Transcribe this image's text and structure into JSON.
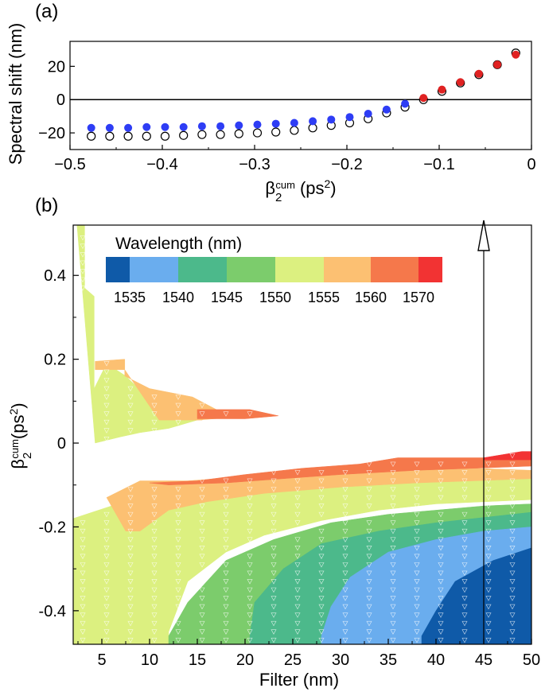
{
  "chart_data": [
    {
      "panel_label": "(a)",
      "type": "scatter",
      "ylabel": "Spectral shift (nm)",
      "xlabel_main": "β",
      "xlabel_sub": "2",
      "xlabel_sup": "cum",
      "xlabel_units": "(ps",
      "xlabel_units_sup": "2",
      "xlabel_units_end": ")",
      "xlim": [
        -0.5,
        0
      ],
      "ylim": [
        -30,
        35
      ],
      "xticks": [
        -0.5,
        -0.4,
        -0.3,
        -0.2,
        -0.1,
        0
      ],
      "xtick_labels": [
        "−0.5",
        "−0.4",
        "−0.3",
        "−0.2",
        "−0.1",
        "0"
      ],
      "yticks": [
        -20,
        0,
        20
      ],
      "ytick_labels": [
        "−20",
        "0",
        "20"
      ],
      "zero_line": 0,
      "series": [
        {
          "name": "open",
          "style": "open-circle",
          "x": [
            -0.477,
            -0.457,
            -0.437,
            -0.417,
            -0.397,
            -0.377,
            -0.357,
            -0.337,
            -0.317,
            -0.297,
            -0.277,
            -0.257,
            -0.237,
            -0.217,
            -0.197,
            -0.177,
            -0.157,
            -0.137,
            -0.117,
            -0.097,
            -0.077,
            -0.057,
            -0.037,
            -0.017
          ],
          "y": [
            -22,
            -22,
            -22,
            -22,
            -22,
            -21.5,
            -21,
            -21,
            -20.5,
            -20,
            -19.5,
            -18.5,
            -17,
            -15.5,
            -14,
            -11.5,
            -8,
            -4.5,
            0,
            5,
            10,
            15,
            21,
            28
          ]
        },
        {
          "name": "blue",
          "style": "filled-circle",
          "color": "#2e3df5",
          "x": [
            -0.477,
            -0.457,
            -0.437,
            -0.417,
            -0.397,
            -0.377,
            -0.357,
            -0.337,
            -0.317,
            -0.297,
            -0.277,
            -0.257,
            -0.237,
            -0.217,
            -0.197,
            -0.177,
            -0.157,
            -0.137
          ],
          "y": [
            -17,
            -17,
            -17,
            -16.5,
            -16.5,
            -16.5,
            -16,
            -16,
            -15.5,
            -15,
            -14.5,
            -14,
            -13,
            -12,
            -10.5,
            -8.5,
            -6,
            -2.5
          ]
        },
        {
          "name": "red",
          "style": "filled-circle",
          "color": "#e02222",
          "x": [
            -0.117,
            -0.097,
            -0.077,
            -0.057,
            -0.037,
            -0.017
          ],
          "y": [
            1,
            6,
            10.5,
            15.5,
            21,
            27
          ]
        }
      ]
    },
    {
      "panel_label": "(b)",
      "type": "heatmap",
      "xlabel": "Filter (nm)",
      "ylabel_main": "β",
      "ylabel_sub": "2",
      "ylabel_sup": "cum",
      "ylabel_units": "(ps",
      "ylabel_units_sup": "2",
      "ylabel_units_end": ")",
      "xlim": [
        2,
        50
      ],
      "ylim": [
        -0.48,
        0.52
      ],
      "xticks": [
        5,
        10,
        15,
        20,
        25,
        30,
        35,
        40,
        45,
        50
      ],
      "xtick_labels": [
        "5",
        "10",
        "15",
        "20",
        "25",
        "30",
        "35",
        "40",
        "45",
        "50"
      ],
      "yticks": [
        -0.4,
        -0.2,
        0,
        0.2,
        0.4
      ],
      "ytick_labels": [
        "-0.4",
        "-0.2",
        "0",
        "0.2",
        "0.4"
      ],
      "arrow_x": 45,
      "legend": {
        "title": "Wavelength (nm)",
        "colors": [
          "#0f5aa8",
          "#6aadee",
          "#4cb98b",
          "#7ccc6c",
          "#dcf080",
          "#fcc072",
          "#f5784b",
          "#f23333"
        ],
        "tick_labels": [
          "1535",
          "1540",
          "1545",
          "1550",
          "1555",
          "1560",
          "1570"
        ]
      },
      "regions": [
        {
          "level": 4,
          "color": "#dcf080",
          "points": [
            [
              2.4,
              0.52
            ],
            [
              3.2,
              0.52
            ],
            [
              3.2,
              0.37
            ],
            [
              4.2,
              0.35
            ],
            [
              4.2,
              0.13
            ],
            [
              5.5,
              0.19
            ],
            [
              7.5,
              0.16
            ],
            [
              10,
              0.105
            ],
            [
              13,
              0.08
            ],
            [
              15,
              0.055
            ],
            [
              12,
              0.035
            ],
            [
              9,
              0.025
            ],
            [
              7,
              0.015
            ],
            [
              4.3,
              0
            ]
          ]
        },
        {
          "level": 5,
          "color": "#fcc072",
          "points": [
            [
              4.3,
              0.195
            ],
            [
              7.4,
              0.2
            ],
            [
              7.4,
              0.16
            ],
            [
              10,
              0.13
            ],
            [
              14.5,
              0.11
            ],
            [
              17,
              0.08
            ],
            [
              15.5,
              0.055
            ],
            [
              11,
              0.055
            ],
            [
              7.4,
              0.175
            ],
            [
              4.3,
              0.175
            ]
          ]
        },
        {
          "level": 5,
          "color": "#fcc072",
          "points": [
            [
              12.5,
              0.09
            ],
            [
              16.5,
              0.07
            ],
            [
              18,
              0.06
            ],
            [
              15,
              0.055
            ]
          ]
        },
        {
          "level": 6,
          "color": "#f5784b",
          "points": [
            [
              15,
              0.08
            ],
            [
              20.5,
              0.08
            ],
            [
              23.5,
              0.065
            ],
            [
              20,
              0.058
            ],
            [
              15,
              0.058
            ]
          ]
        },
        {
          "level": 4,
          "color": "#dcf080",
          "points": [
            [
              2.0,
              -0.48
            ],
            [
              12,
              -0.48
            ],
            [
              12,
              -0.45
            ],
            [
              14,
              -0.33
            ],
            [
              18,
              -0.26
            ],
            [
              22,
              -0.22
            ],
            [
              28,
              -0.185
            ],
            [
              34,
              -0.16
            ],
            [
              40,
              -0.145
            ],
            [
              50,
              -0.135
            ],
            [
              50,
              -0.07
            ],
            [
              44,
              -0.075
            ],
            [
              35,
              -0.08
            ],
            [
              25,
              -0.09
            ],
            [
              17,
              -0.1
            ],
            [
              10,
              -0.12
            ],
            [
              6,
              -0.15
            ],
            [
              2.0,
              -0.18
            ]
          ]
        },
        {
          "level": 5,
          "color": "#fcc072",
          "points": [
            [
              5.5,
              -0.13
            ],
            [
              7.5,
              -0.21
            ],
            [
              9,
              -0.21
            ],
            [
              12,
              -0.16
            ],
            [
              16,
              -0.14
            ],
            [
              22,
              -0.12
            ],
            [
              30,
              -0.105
            ],
            [
              38,
              -0.095
            ],
            [
              50,
              -0.085
            ],
            [
              50,
              -0.065
            ],
            [
              44,
              -0.06
            ],
            [
              36,
              -0.05
            ],
            [
              28,
              -0.06
            ],
            [
              20,
              -0.08
            ],
            [
              14,
              -0.09
            ],
            [
              9,
              -0.09
            ]
          ]
        },
        {
          "level": 6,
          "color": "#f5784b",
          "points": [
            [
              10,
              -0.095
            ],
            [
              15,
              -0.09
            ],
            [
              20,
              -0.075
            ],
            [
              26,
              -0.06
            ],
            [
              32,
              -0.05
            ],
            [
              36,
              -0.035
            ],
            [
              50,
              -0.035
            ],
            [
              50,
              -0.055
            ],
            [
              44,
              -0.06
            ],
            [
              38,
              -0.065
            ],
            [
              30,
              -0.075
            ],
            [
              24,
              -0.085
            ],
            [
              18,
              -0.095
            ],
            [
              12,
              -0.1
            ]
          ]
        },
        {
          "level": 7,
          "color": "#f23333",
          "points": [
            [
              45,
              -0.035
            ],
            [
              49,
              -0.02
            ],
            [
              50,
              -0.02
            ],
            [
              50,
              -0.04
            ],
            [
              45,
              -0.04
            ]
          ]
        },
        {
          "level": 3,
          "color": "#7ccc6c",
          "points": [
            [
              12,
              -0.48
            ],
            [
              50,
              -0.48
            ],
            [
              50,
              -0.145
            ],
            [
              45,
              -0.15
            ],
            [
              40,
              -0.16
            ],
            [
              35,
              -0.17
            ],
            [
              29,
              -0.19
            ],
            [
              23,
              -0.23
            ],
            [
              18,
              -0.28
            ],
            [
              14,
              -0.38
            ],
            [
              12,
              -0.46
            ]
          ]
        },
        {
          "level": 2,
          "color": "#4cb98b",
          "points": [
            [
              20.5,
              -0.48
            ],
            [
              50,
              -0.48
            ],
            [
              50,
              -0.165
            ],
            [
              46,
              -0.175
            ],
            [
              40,
              -0.19
            ],
            [
              34,
              -0.21
            ],
            [
              28,
              -0.24
            ],
            [
              24,
              -0.3
            ],
            [
              21,
              -0.38
            ],
            [
              20.5,
              -0.46
            ]
          ]
        },
        {
          "level": 1,
          "color": "#6aadee",
          "points": [
            [
              28,
              -0.48
            ],
            [
              50,
              -0.48
            ],
            [
              50,
              -0.2
            ],
            [
              45,
              -0.21
            ],
            [
              40,
              -0.23
            ],
            [
              35,
              -0.26
            ],
            [
              31,
              -0.32
            ],
            [
              29,
              -0.39
            ],
            [
              28,
              -0.46
            ]
          ]
        },
        {
          "level": 0,
          "color": "#0f5aa8",
          "points": [
            [
              38.5,
              -0.48
            ],
            [
              50,
              -0.48
            ],
            [
              50,
              -0.25
            ],
            [
              46,
              -0.28
            ],
            [
              42,
              -0.33
            ],
            [
              40,
              -0.4
            ],
            [
              38.5,
              -0.46
            ]
          ]
        }
      ]
    }
  ]
}
